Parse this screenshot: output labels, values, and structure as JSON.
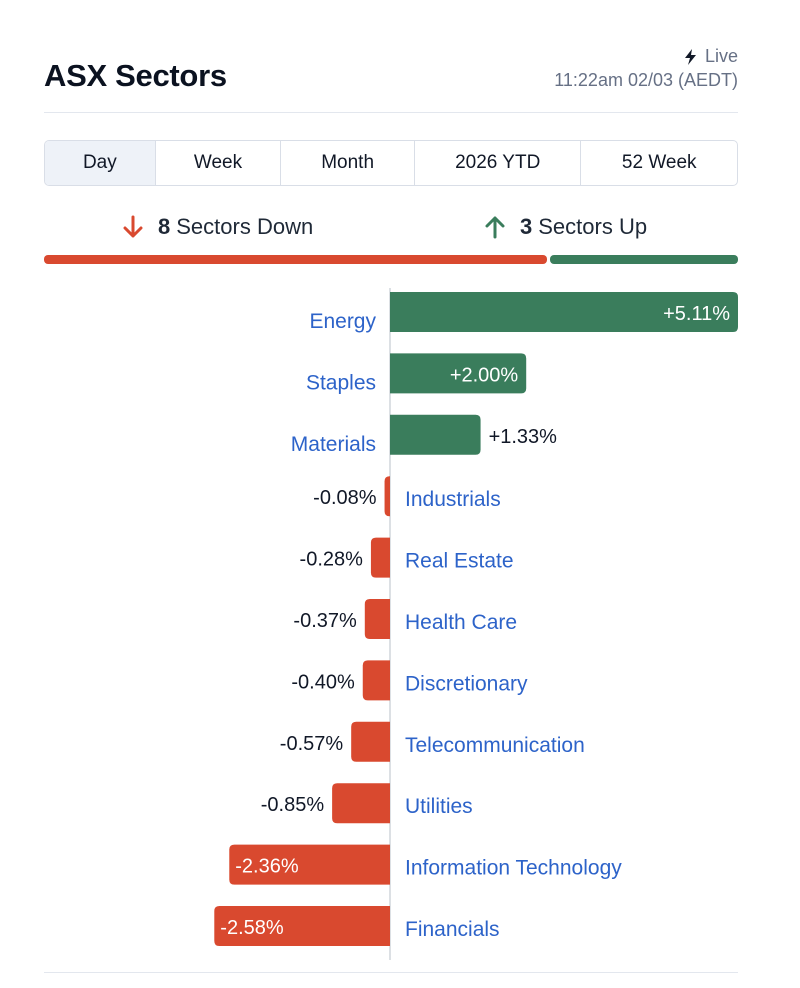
{
  "header": {
    "title": "ASX Sectors",
    "live_label": "Live",
    "timestamp": "11:22am 02/03 (AEDT)"
  },
  "tabs": [
    {
      "label": "Day",
      "active": true
    },
    {
      "label": "Week",
      "active": false
    },
    {
      "label": "Month",
      "active": false
    },
    {
      "label": "2026 YTD",
      "active": false
    },
    {
      "label": "52 Week",
      "active": false
    }
  ],
  "summary": {
    "down_count": "8",
    "down_label": "Sectors Down",
    "up_count": "3",
    "up_label": "Sectors Up"
  },
  "colors": {
    "positive": "#3a7d5c",
    "negative": "#d9492f",
    "label_link": "#2d63c9",
    "axis": "#d1d5db"
  },
  "icons": {
    "live": "lightning-bolt-icon",
    "down": "arrow-down-icon",
    "up": "arrow-up-icon"
  },
  "chart_data": {
    "type": "bar",
    "orientation": "horizontal",
    "categories": [
      "Energy",
      "Staples",
      "Materials",
      "Industrials",
      "Real Estate",
      "Health Care",
      "Discretionary",
      "Telecommunication",
      "Utilities",
      "Information Technology",
      "Financials"
    ],
    "values": [
      5.11,
      2.0,
      1.33,
      -0.08,
      -0.28,
      -0.37,
      -0.4,
      -0.57,
      -0.85,
      -2.36,
      -2.58
    ],
    "value_labels": [
      "+5.11%",
      "+2.00%",
      "+1.33%",
      "-0.08%",
      "-0.28%",
      "-0.37%",
      "-0.40%",
      "-0.57%",
      "-0.85%",
      "-2.36%",
      "-2.58%"
    ],
    "title": "",
    "xlabel": "",
    "ylabel": "",
    "grid": false
  }
}
